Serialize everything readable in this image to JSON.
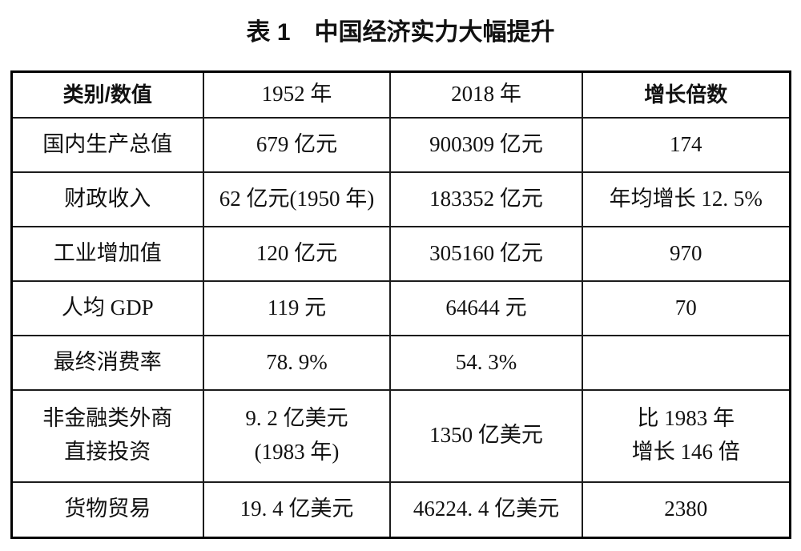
{
  "colors": {
    "background": "#ffffff",
    "text": "#111111",
    "border": "#000000"
  },
  "caption": "表 1　中国经济实力大幅提升",
  "table": {
    "headers": [
      "类别/数值",
      "1952 年",
      "2018 年",
      "增长倍数"
    ],
    "rows": [
      {
        "cells": [
          "国内生产总值",
          "679 亿元",
          "900309 亿元",
          "174"
        ]
      },
      {
        "cells": [
          "财政收入",
          "62 亿元(1950 年)",
          "183352 亿元",
          "年均增长 12. 5%"
        ]
      },
      {
        "cells": [
          "工业增加值",
          "120 亿元",
          "305160 亿元",
          "970"
        ]
      },
      {
        "cells": [
          "人均 GDP",
          "119 元",
          "64644 元",
          "70"
        ]
      },
      {
        "cells": [
          "最终消费率",
          "78. 9%",
          "54. 3%",
          ""
        ]
      },
      {
        "cells": [
          "非金融类外商\n直接投资",
          "9. 2 亿美元\n(1983 年)",
          "1350 亿美元",
          "比 1983 年\n增长 146 倍"
        ]
      },
      {
        "cells": [
          "货物贸易",
          "19. 4 亿美元",
          "46224. 4 亿美元",
          "2380"
        ]
      }
    ]
  }
}
